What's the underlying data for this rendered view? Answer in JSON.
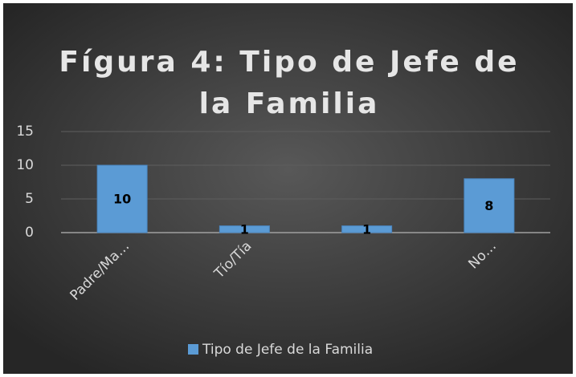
{
  "chart_data": {
    "type": "bar",
    "title": "Fígura 4: Tipo de Jefe de la Familia",
    "categories": [
      "Padre/Ma…",
      "Tío/Tía",
      null,
      "No…"
    ],
    "series": [
      {
        "name": "Tipo de Jefe de la Familia",
        "color": "#5b9bd5",
        "values": [
          10,
          1,
          1,
          8
        ]
      }
    ],
    "ylim": [
      0,
      15
    ],
    "yticks": [
      0,
      5,
      10,
      15
    ],
    "grid": true,
    "legend": "bottom"
  }
}
